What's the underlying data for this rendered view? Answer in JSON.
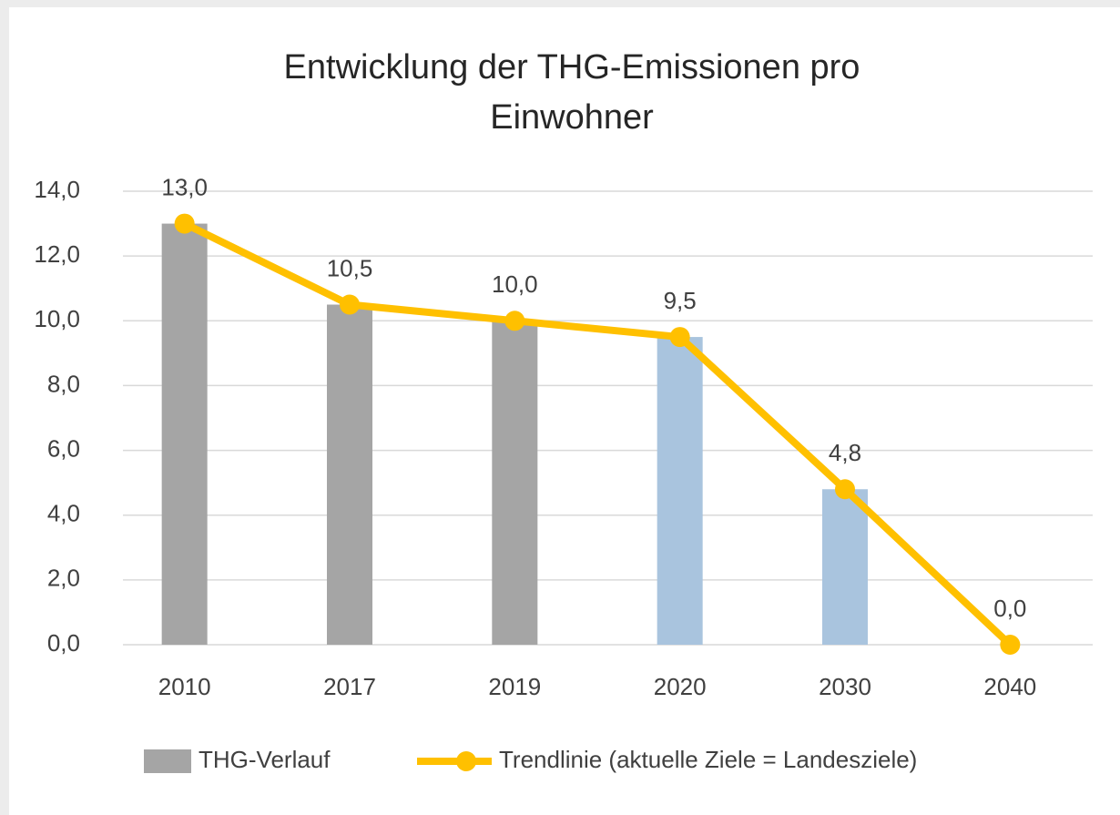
{
  "chart_data": {
    "type": "bar+line",
    "title": [
      "Entwicklung der THG-Emissionen pro",
      "Einwohner"
    ],
    "categories": [
      "2010",
      "2017",
      "2019",
      "2020",
      "2030",
      "2040"
    ],
    "series": [
      {
        "name": "THG-Verlauf",
        "type": "bar",
        "color": "#a5a5a5",
        "colors": [
          "#a5a5a5",
          "#a5a5a5",
          "#a5a5a5",
          "#a9c4de",
          "#a9c4de",
          "#a9c4de"
        ],
        "values": [
          13,
          10.5,
          10,
          9.5,
          4.8,
          null
        ]
      },
      {
        "name": "Trendlinie (aktuelle Ziele = Landesziele)",
        "type": "line",
        "color": "#ffc000",
        "values": [
          13,
          10.5,
          10,
          9.5,
          4.8,
          0
        ],
        "value_labels": [
          "13,0",
          "10,5",
          "10,0",
          "9,5",
          "4,8",
          "0,0"
        ]
      }
    ],
    "ylim": [
      0,
      14
    ],
    "yticks": [
      {
        "value": 0,
        "label": "0,0"
      },
      {
        "value": 2,
        "label": "2,0"
      },
      {
        "value": 4,
        "label": "4,0"
      },
      {
        "value": 6,
        "label": "6,0"
      },
      {
        "value": 8,
        "label": "8,0"
      },
      {
        "value": 10,
        "label": "10,0"
      },
      {
        "value": 12,
        "label": "12,0"
      },
      {
        "value": 14,
        "label": "14,0"
      }
    ],
    "grid": true,
    "legend": "bottom"
  }
}
